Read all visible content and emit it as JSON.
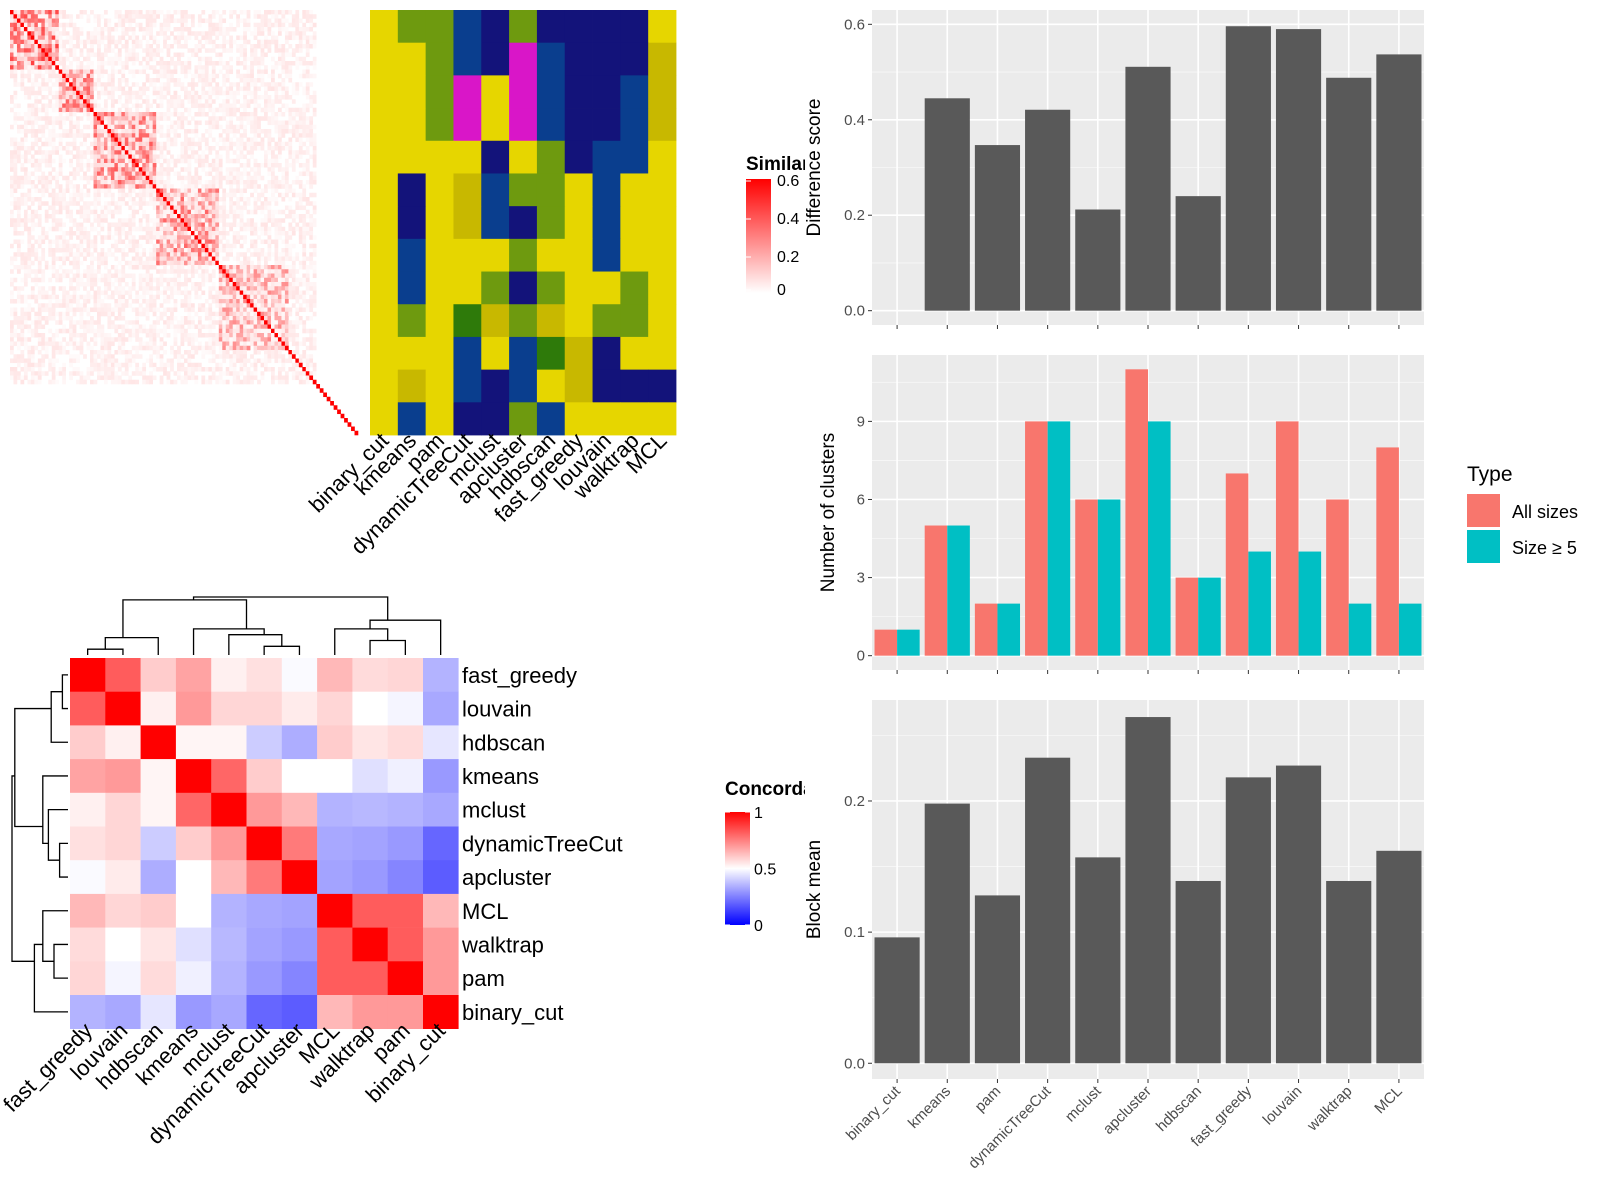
{
  "chart_data": [
    {
      "type": "heatmap",
      "legend": {
        "title": "Similarity",
        "ticks": [
          0,
          0.2,
          0.4,
          0.6
        ]
      },
      "colors": {
        "low": "#ffffff",
        "high": "#ff0000"
      },
      "size": 100,
      "blocks": [
        [
          0,
          14,
          0.35
        ],
        [
          14,
          24,
          0.3
        ],
        [
          24,
          42,
          0.3
        ],
        [
          42,
          60,
          0.28
        ],
        [
          60,
          80,
          0.22
        ]
      ],
      "diagonal": 0.6
    },
    {
      "type": "heatmap",
      "columns": [
        "binary_cut",
        "kmeans",
        "pam",
        "dynamicTreeCut",
        "mclust",
        "apcluster",
        "hdbscan",
        "fast_greedy",
        "louvain",
        "walktrap",
        "MCL"
      ],
      "palette": [
        "#e6d600",
        "#6e9a0f",
        "#0a3e8e",
        "#13137a",
        "#d3c400",
        "#d916c8",
        "#c8b800",
        "#2e7a0a"
      ],
      "values": [
        [
          0,
          1,
          1,
          2,
          3,
          1,
          3,
          3,
          3,
          3,
          0
        ],
        [
          0,
          0,
          1,
          2,
          3,
          5,
          2,
          3,
          3,
          3,
          6
        ],
        [
          0,
          0,
          1,
          5,
          0,
          5,
          2,
          3,
          3,
          2,
          6
        ],
        [
          0,
          0,
          1,
          5,
          0,
          5,
          2,
          3,
          3,
          2,
          6
        ],
        [
          0,
          0,
          0,
          0,
          3,
          0,
          1,
          3,
          2,
          2,
          0
        ],
        [
          0,
          3,
          0,
          6,
          2,
          1,
          1,
          0,
          2,
          0,
          0
        ],
        [
          0,
          3,
          0,
          6,
          2,
          3,
          1,
          0,
          2,
          0,
          0
        ],
        [
          0,
          2,
          0,
          0,
          0,
          1,
          0,
          0,
          2,
          0,
          0
        ],
        [
          0,
          2,
          0,
          0,
          1,
          3,
          1,
          0,
          0,
          1,
          0
        ],
        [
          0,
          1,
          0,
          7,
          6,
          1,
          6,
          0,
          1,
          1,
          0
        ],
        [
          0,
          0,
          0,
          2,
          0,
          2,
          7,
          6,
          3,
          0,
          0
        ],
        [
          0,
          6,
          0,
          2,
          3,
          2,
          0,
          6,
          3,
          3,
          3
        ],
        [
          0,
          2,
          0,
          3,
          3,
          1,
          2,
          0,
          0,
          0,
          0
        ]
      ]
    },
    {
      "type": "heatmap",
      "title": "",
      "legend": {
        "title": "Concordance",
        "ticks": [
          0,
          0.5,
          1
        ]
      },
      "rows": [
        "fast_greedy",
        "louvain",
        "hdbscan",
        "kmeans",
        "mclust",
        "dynamicTreeCut",
        "apcluster",
        "MCL",
        "walktrap",
        "pam",
        "binary_cut"
      ],
      "columns": [
        "fast_greedy",
        "louvain",
        "hdbscan",
        "kmeans",
        "mclust",
        "dynamicTreeCut",
        "apcluster",
        "MCL",
        "walktrap",
        "pam",
        "binary_cut"
      ],
      "values": [
        [
          1.0,
          0.82,
          0.6,
          0.68,
          0.53,
          0.56,
          0.49,
          0.64,
          0.57,
          0.58,
          0.35
        ],
        [
          0.82,
          1.0,
          0.53,
          0.7,
          0.58,
          0.58,
          0.54,
          0.58,
          0.5,
          0.48,
          0.33
        ],
        [
          0.6,
          0.53,
          1.0,
          0.52,
          0.52,
          0.4,
          0.34,
          0.6,
          0.55,
          0.57,
          0.45
        ],
        [
          0.68,
          0.7,
          0.52,
          1.0,
          0.8,
          0.6,
          0.5,
          0.5,
          0.44,
          0.47,
          0.3
        ],
        [
          0.53,
          0.58,
          0.52,
          0.8,
          1.0,
          0.7,
          0.64,
          0.35,
          0.36,
          0.35,
          0.33
        ],
        [
          0.56,
          0.58,
          0.4,
          0.6,
          0.7,
          1.0,
          0.76,
          0.33,
          0.32,
          0.3,
          0.2
        ],
        [
          0.49,
          0.54,
          0.34,
          0.5,
          0.64,
          0.76,
          1.0,
          0.32,
          0.3,
          0.26,
          0.18
        ],
        [
          0.64,
          0.58,
          0.6,
          0.5,
          0.35,
          0.33,
          0.32,
          1.0,
          0.82,
          0.82,
          0.64
        ],
        [
          0.57,
          0.5,
          0.55,
          0.44,
          0.36,
          0.32,
          0.3,
          0.82,
          1.0,
          0.82,
          0.7
        ],
        [
          0.58,
          0.48,
          0.57,
          0.47,
          0.35,
          0.3,
          0.26,
          0.82,
          0.82,
          1.0,
          0.7
        ],
        [
          0.35,
          0.33,
          0.45,
          0.3,
          0.33,
          0.2,
          0.18,
          0.64,
          0.7,
          0.7,
          1.0
        ]
      ],
      "colors": {
        "low": "#0000ff",
        "mid": "#ffffff",
        "high": "#ff0000"
      }
    },
    {
      "type": "bar",
      "categories": [
        "binary_cut",
        "kmeans",
        "pam",
        "dynamicTreeCut",
        "mclust",
        "apcluster",
        "hdbscan",
        "fast_greedy",
        "louvain",
        "walktrap",
        "MCL"
      ],
      "values": [
        0,
        0.445,
        0.347,
        0.421,
        0.212,
        0.511,
        0.24,
        0.596,
        0.59,
        0.488,
        0.537
      ],
      "ylabel": "Difference score",
      "ylim": [
        -0.03,
        0.63
      ],
      "yticks": [
        0.0,
        0.2,
        0.4,
        0.6
      ],
      "ytick_labels": [
        "0.0",
        "0.2",
        "0.4",
        "0.6"
      ],
      "bar_color": "#595959"
    },
    {
      "type": "bar",
      "categories": [
        "binary_cut",
        "kmeans",
        "pam",
        "dynamicTreeCut",
        "mclust",
        "apcluster",
        "hdbscan",
        "fast_greedy",
        "louvain",
        "walktrap",
        "MCL"
      ],
      "series": [
        {
          "name": "All sizes",
          "color": "#f8766d",
          "values": [
            1,
            5,
            2,
            9,
            6,
            11,
            3,
            7,
            9,
            6,
            8
          ]
        },
        {
          "name": "Size ≥ 5",
          "color": "#00bfc4",
          "values": [
            1,
            5,
            2,
            9,
            6,
            9,
            3,
            4,
            4,
            2,
            2
          ]
        }
      ],
      "ylabel": "Number of clusters",
      "ylim": [
        -0.55,
        11.55
      ],
      "yticks": [
        0,
        3,
        6,
        9
      ],
      "legend": {
        "title": "Type",
        "placement": "right"
      }
    },
    {
      "type": "bar",
      "categories": [
        "binary_cut",
        "kmeans",
        "pam",
        "dynamicTreeCut",
        "mclust",
        "apcluster",
        "hdbscan",
        "fast_greedy",
        "louvain",
        "walktrap",
        "MCL"
      ],
      "values": [
        0.096,
        0.198,
        0.128,
        0.233,
        0.157,
        0.264,
        0.139,
        0.218,
        0.227,
        0.139,
        0.162
      ],
      "ylabel": "Block mean",
      "ylim": [
        -0.012,
        0.277
      ],
      "yticks": [
        0.0,
        0.1,
        0.2
      ],
      "ytick_labels": [
        "0.0",
        "0.1",
        "0.2"
      ],
      "bar_color": "#595959"
    }
  ]
}
